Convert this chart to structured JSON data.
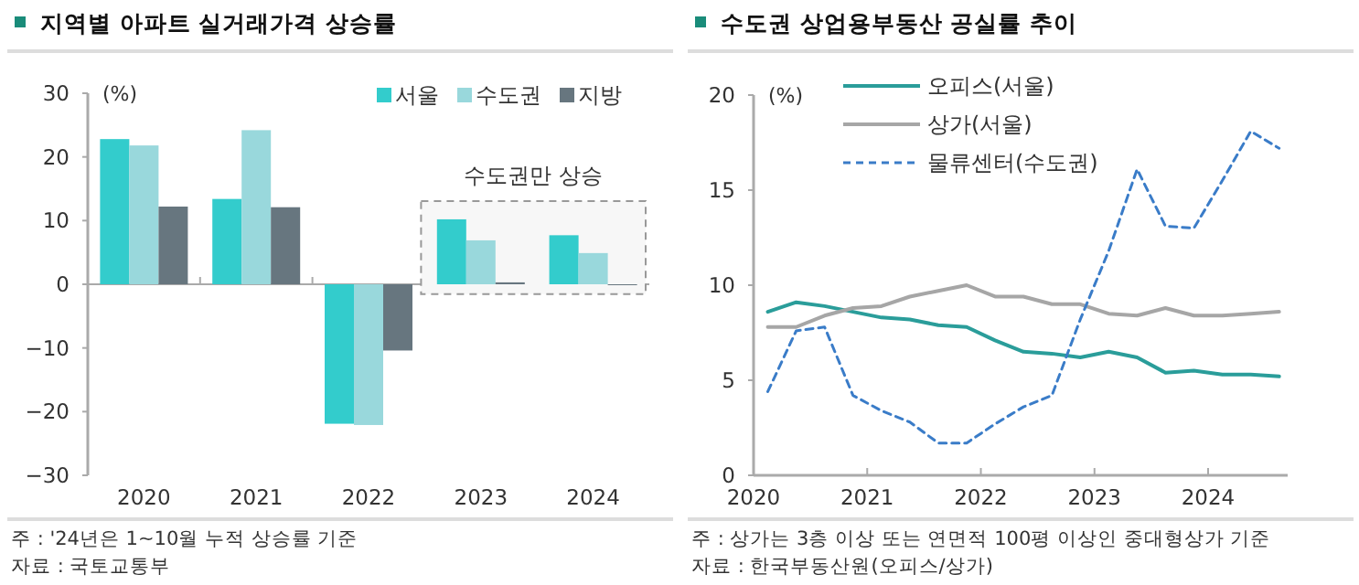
{
  "chart_data": [
    {
      "type": "bar",
      "title": "지역별 아파트 실거래가격 상승률",
      "ylabel": "(%)",
      "categories": [
        "2020",
        "2021",
        "2022",
        "2023",
        "2024"
      ],
      "series": [
        {
          "name": "서울",
          "color": "#33cccc",
          "values": [
            22.8,
            13.4,
            -21.9,
            10.2,
            7.7
          ]
        },
        {
          "name": "수도권",
          "color": "#99d8dc",
          "values": [
            21.8,
            24.2,
            -22.1,
            6.9,
            4.9
          ]
        },
        {
          "name": "지방",
          "color": "#67767f",
          "values": [
            12.2,
            12.1,
            -10.4,
            0.3,
            -0.1
          ]
        }
      ],
      "ylim": [
        -30,
        30
      ],
      "yticks": [
        {
          "value": -30,
          "label": "−30"
        },
        {
          "value": -20,
          "label": "−20"
        },
        {
          "value": -10,
          "label": "−10"
        },
        0,
        10,
        20,
        30
      ],
      "legend": "top right",
      "bands": [
        {
          "axis": "x",
          "from": "2023",
          "to": "2024",
          "label": "수도권만 상승",
          "color": "#f7f7f7"
        }
      ],
      "annotations": [
        "주 : '24년은 1~10월 누적 상승률 기준",
        "자료 : 국토교통부"
      ]
    },
    {
      "type": "line",
      "title": "수도권 상업용부동산 공실률 추이",
      "ylabel": "(%)",
      "x": [
        2020.125,
        2020.375,
        2020.625,
        2020.875,
        2021.125,
        2021.375,
        2021.625,
        2021.875,
        2022.125,
        2022.375,
        2022.625,
        2022.875,
        2023.125,
        2023.375,
        2023.625,
        2023.875,
        2024.125,
        2024.375,
        2024.625
      ],
      "series": [
        {
          "name": "오피스(서울)",
          "color": "#2a9d9a",
          "line_style": "solid",
          "values": [
            8.6,
            9.1,
            8.9,
            8.6,
            8.3,
            8.2,
            7.9,
            7.8,
            7.1,
            6.5,
            6.4,
            6.2,
            6.5,
            6.2,
            5.4,
            5.5,
            5.3,
            5.3,
            5.2
          ]
        },
        {
          "name": "상가(서울)",
          "color": "#a6a6a6",
          "line_style": "solid",
          "values": [
            7.8,
            7.8,
            8.4,
            8.8,
            8.9,
            9.4,
            9.7,
            10.0,
            9.4,
            9.4,
            9.0,
            9.0,
            8.5,
            8.4,
            8.8,
            8.4,
            8.4,
            8.5,
            8.6
          ]
        },
        {
          "name": "물류센터(수도권)",
          "color": "#3a7cc8",
          "line_style": "dashed",
          "values": [
            4.4,
            7.6,
            7.8,
            4.2,
            3.4,
            2.8,
            1.7,
            1.7,
            2.7,
            3.6,
            4.2,
            8.2,
            11.8,
            16.1,
            13.1,
            13.0,
            15.5,
            18.1,
            17.2
          ]
        }
      ],
      "xlim": [
        2020,
        2024.7
      ],
      "xticks": [
        2020,
        2021,
        2022,
        2023,
        2024
      ],
      "ylim": [
        0,
        20
      ],
      "yticks": [
        0,
        5,
        10,
        15,
        20
      ],
      "legend": "top left",
      "annotations": [
        "주 : 상가는 3층 이상 또는 연면적 100평 이상인 중대형상가 기준",
        "자료 : 한국부동산원(오피스/상가)"
      ]
    }
  ]
}
